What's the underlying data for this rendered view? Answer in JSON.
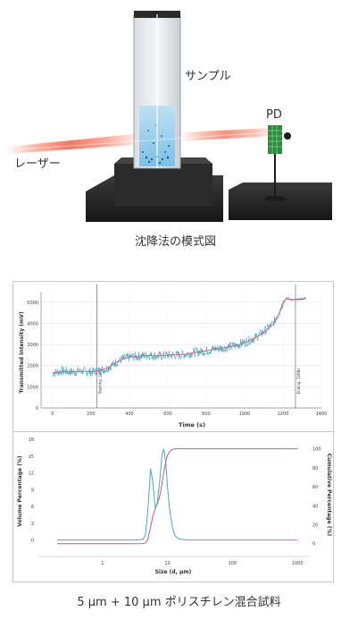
{
  "illustration": {
    "sample_label": "サンプル",
    "pd_label": "PD",
    "laser_label": "レーザー",
    "caption": "沈降法の模式図"
  },
  "chart_data": [
    {
      "type": "line",
      "title": "",
      "xlabel": "Time (s)",
      "ylabel": "Transmitted Intensity (mV)",
      "xlim": [
        -60,
        1400
      ],
      "ylim": [
        0,
        5500
      ],
      "x_ticks": [
        0,
        200,
        400,
        600,
        800,
        1000,
        1200,
        1400
      ],
      "y_ticks": [
        0,
        1000,
        2000,
        3000,
        4000,
        5000
      ],
      "grid": true,
      "annotations": [
        {
          "x": 230,
          "text": "Starting: 240s"
        },
        {
          "x": 1265,
          "text": "Ending: 1288s"
        }
      ],
      "series": [
        {
          "color": "#4aa8c8",
          "x": [
            0,
            50,
            100,
            150,
            200,
            240,
            280,
            320,
            360,
            400,
            450,
            500,
            550,
            600,
            650,
            700,
            750,
            800,
            850,
            900,
            950,
            1000,
            1050,
            1100,
            1150,
            1180,
            1200,
            1220,
            1250,
            1300,
            1320
          ],
          "y": [
            1650,
            1750,
            1700,
            1750,
            1700,
            1750,
            1850,
            2100,
            2300,
            2400,
            2450,
            2500,
            2450,
            2500,
            2500,
            2550,
            2650,
            2700,
            2800,
            2850,
            2950,
            3100,
            3300,
            3600,
            4000,
            4500,
            5000,
            5200,
            5100,
            5150,
            5200
          ]
        },
        {
          "color": "#d45a7a",
          "x": [
            0,
            50,
            100,
            150,
            200,
            240,
            280,
            320,
            360,
            400,
            450,
            500,
            550,
            600,
            650,
            700,
            750,
            800,
            850,
            900,
            950,
            1000,
            1050,
            1100,
            1150,
            1180,
            1200,
            1220,
            1250,
            1300,
            1320
          ],
          "y": [
            1650,
            1720,
            1700,
            1730,
            1710,
            1760,
            1870,
            2090,
            2290,
            2400,
            2440,
            2490,
            2460,
            2500,
            2510,
            2550,
            2640,
            2700,
            2790,
            2860,
            2940,
            3090,
            3290,
            3580,
            3980,
            4480,
            4980,
            5180,
            5120,
            5150,
            5190
          ]
        }
      ]
    },
    {
      "type": "line",
      "title": "",
      "xlabel": "Size (d, μm)",
      "ylabel": "Volume Percentage (%)",
      "y2label": "Cumulative Percentage (%)",
      "x_scale": "log",
      "xlim": [
        0.1,
        1500
      ],
      "ylim": [
        -1.5,
        18
      ],
      "y2lim": [
        -5,
        110
      ],
      "x_ticks": [
        1,
        10,
        100,
        1000
      ],
      "y_ticks": [
        0,
        3,
        6,
        9,
        12,
        15,
        18
      ],
      "y2_ticks": [
        0,
        20,
        40,
        60,
        80,
        100
      ],
      "grid": false,
      "series": [
        {
          "axis": "left",
          "color": "#4aa8c8",
          "x": [
            0.2,
            1,
            3,
            4.2,
            4.6,
            5.0,
            5.5,
            6.0,
            6.5,
            7.0,
            7.6,
            8.2,
            8.8,
            9.4,
            10,
            10.8,
            11.8,
            13,
            15,
            20,
            50,
            100,
            300,
            1000
          ],
          "y": [
            0,
            0,
            0,
            0.1,
            1.0,
            5.5,
            12.8,
            10.0,
            5.5,
            6.8,
            10.5,
            15.0,
            16.3,
            14.0,
            9.5,
            5.5,
            2.5,
            0.8,
            0.2,
            0,
            0,
            0,
            0,
            0
          ]
        },
        {
          "axis": "right",
          "color": "#d45a7a",
          "x": [
            0.2,
            1,
            3,
            4.2,
            4.6,
            5.0,
            5.5,
            6.0,
            6.5,
            7.0,
            7.6,
            8.2,
            8.8,
            9.4,
            10,
            10.8,
            11.8,
            13,
            15,
            20,
            50,
            100,
            300,
            1000
          ],
          "y": [
            0,
            0,
            0,
            0.1,
            0.8,
            5,
            18,
            30,
            37,
            42,
            50,
            62,
            75,
            86,
            93,
            97,
            99,
            100,
            100,
            100,
            100,
            100,
            100,
            100
          ]
        }
      ]
    }
  ],
  "bottom_caption": "5 μm + 10 μm ポリスチレン混合試料"
}
